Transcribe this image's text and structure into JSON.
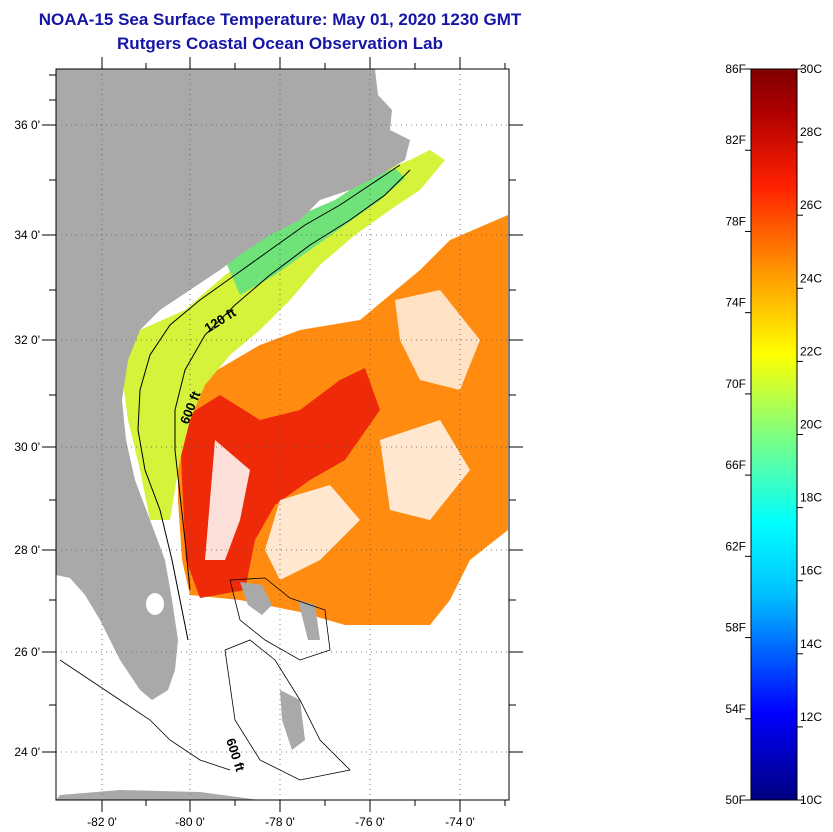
{
  "header": {
    "title": "NOAA-15 Sea Surface Temperature:  May 01, 2020 1230 GMT",
    "subtitle": "Rutgers Coastal Ocean Observation Lab"
  },
  "map": {
    "lat_ticks": [
      "36 0'",
      "34 0'",
      "32 0'",
      "30 0'",
      "28 0'",
      "26 0'",
      "24 0'"
    ],
    "lon_ticks": [
      "-82 0'",
      "-80 0'",
      "-78 0'",
      "-76 0'",
      "-74 0'"
    ],
    "contour_labels": [
      "120 ft",
      "600 ft",
      "600 ft"
    ],
    "colors": {
      "land": "#a9a9a9",
      "ocean_no_data": "#ffffff",
      "frame": "#000000"
    }
  },
  "colorbar": {
    "fahrenheit_labels": [
      "86F",
      "82F",
      "78F",
      "74F",
      "70F",
      "66F",
      "62F",
      "58F",
      "54F",
      "50F"
    ],
    "celsius_labels": [
      "30C",
      "28C",
      "26C",
      "24C",
      "22C",
      "20C",
      "18C",
      "16C",
      "14C",
      "12C",
      "10C"
    ],
    "range_f": [
      50,
      86
    ],
    "range_c": [
      10,
      30
    ],
    "colors": [
      "#00007f",
      "#0000ff",
      "#00bfff",
      "#00ffff",
      "#7fff7f",
      "#ffff00",
      "#ff9900",
      "#ff2000",
      "#b00000",
      "#7f0000"
    ]
  }
}
